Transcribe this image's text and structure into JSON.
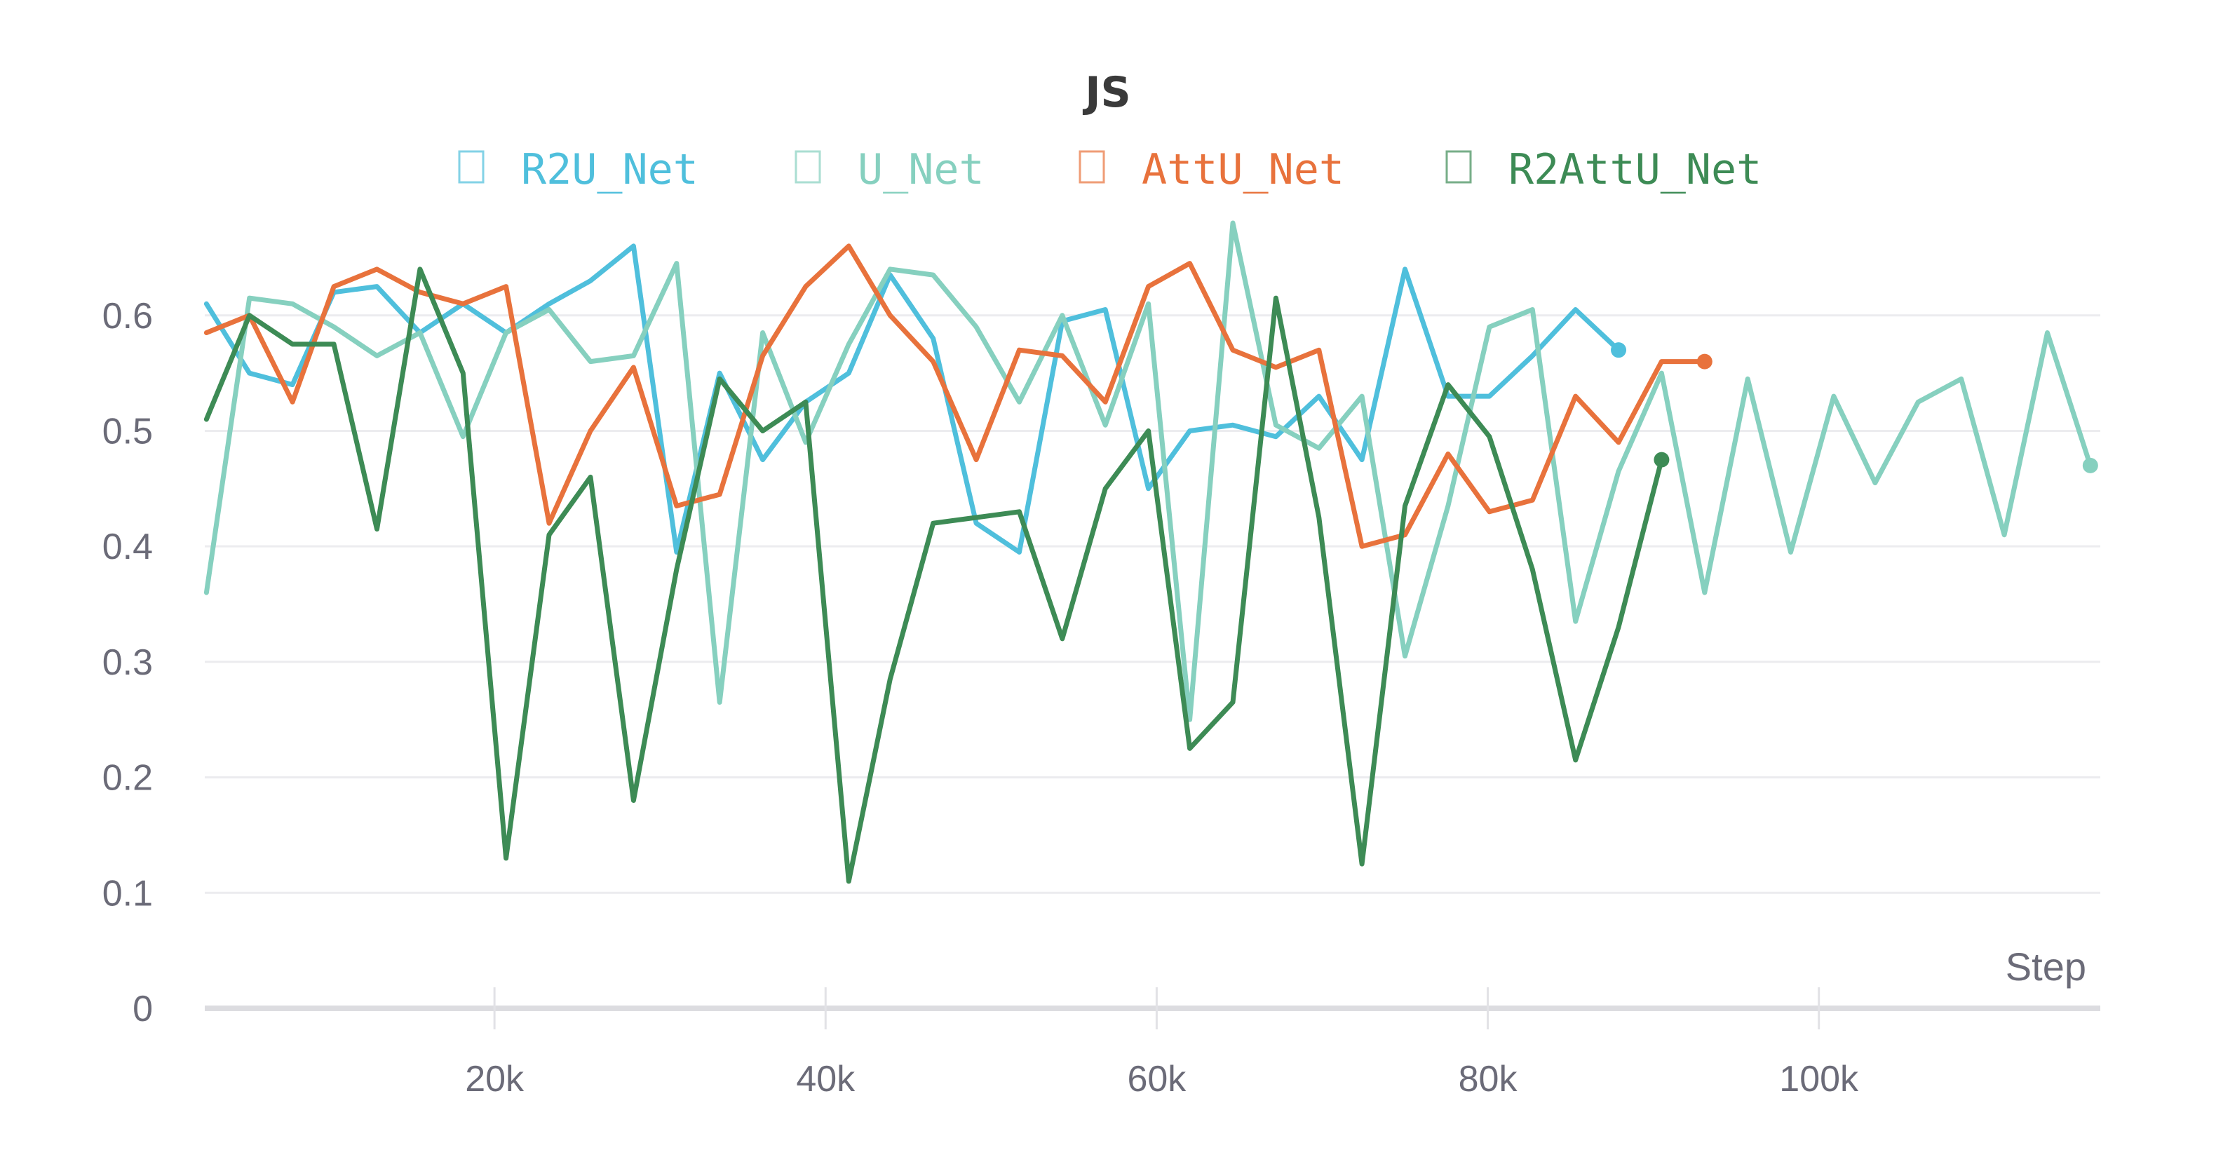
{
  "chart_data": {
    "type": "line",
    "title": "JS",
    "xlabel": "Step",
    "ylabel": "",
    "xlim": [
      2500,
      117000
    ],
    "ylim": [
      0,
      0.68
    ],
    "xticks": [
      20000,
      40000,
      60000,
      80000,
      100000
    ],
    "xtick_labels": [
      "20k",
      "40k",
      "60k",
      "80k",
      "100k"
    ],
    "yticks": [
      0,
      0.1,
      0.2,
      0.3,
      0.4,
      0.5,
      0.6
    ],
    "ytick_labels": [
      "0",
      "0.1",
      "0.2",
      "0.3",
      "0.4",
      "0.5",
      "0.6"
    ],
    "grid": true,
    "legend": "top-center",
    "series": [
      {
        "name": "R2U_Net",
        "color": "#4fbfdc",
        "x": [
          2600,
          5200,
          7800,
          10300,
          12900,
          15500,
          18100,
          20700,
          23300,
          25800,
          28400,
          31000,
          33600,
          36200,
          38800,
          41400,
          43900,
          46500,
          49100,
          51700,
          54300,
          56900,
          59500,
          62000,
          64600,
          67200,
          69800,
          72400,
          75000,
          77600,
          80100,
          82700,
          85300,
          87900
        ],
        "y": [
          0.61,
          0.55,
          0.54,
          0.62,
          0.625,
          0.585,
          0.61,
          0.585,
          0.61,
          0.63,
          0.66,
          0.395,
          0.55,
          0.475,
          0.525,
          0.55,
          0.635,
          0.58,
          0.42,
          0.395,
          0.595,
          0.605,
          0.45,
          0.5,
          0.505,
          0.495,
          0.53,
          0.475,
          0.64,
          0.53,
          0.53,
          0.565,
          0.605,
          0.57
        ]
      },
      {
        "name": "U_Net",
        "color": "#86d0bf",
        "x": [
          2600,
          5200,
          7800,
          10300,
          12900,
          15500,
          18100,
          20700,
          23300,
          25800,
          28400,
          31000,
          33600,
          36200,
          38800,
          41400,
          43900,
          46500,
          49100,
          51700,
          54300,
          56900,
          59500,
          62000,
          64600,
          67200,
          69800,
          72400,
          75000,
          77600,
          80100,
          82700,
          85300,
          87900,
          90500,
          93100,
          95700,
          98300,
          100900,
          103400,
          106000,
          108600,
          111200,
          113800,
          116400
        ],
        "y": [
          0.36,
          0.615,
          0.61,
          0.59,
          0.565,
          0.585,
          0.495,
          0.585,
          0.605,
          0.56,
          0.565,
          0.645,
          0.265,
          0.585,
          0.49,
          0.575,
          0.64,
          0.635,
          0.59,
          0.525,
          0.6,
          0.505,
          0.61,
          0.25,
          0.68,
          0.505,
          0.485,
          0.53,
          0.305,
          0.435,
          0.59,
          0.605,
          0.335,
          0.465,
          0.55,
          0.36,
          0.545,
          0.395,
          0.53,
          0.455,
          0.525,
          0.545,
          0.41,
          0.585,
          0.47
        ]
      },
      {
        "name": "AttU_Net",
        "color": "#e8723c",
        "x": [
          2600,
          5200,
          7800,
          10300,
          12900,
          15500,
          18100,
          20700,
          23300,
          25800,
          28400,
          31000,
          33600,
          36200,
          38800,
          41400,
          43900,
          46500,
          49100,
          51700,
          54300,
          56900,
          59500,
          62000,
          64600,
          67200,
          69800,
          72400,
          75000,
          77600,
          80100,
          82700,
          85300,
          87900,
          90500,
          93100
        ],
        "y": [
          0.585,
          0.6,
          0.525,
          0.625,
          0.64,
          0.62,
          0.61,
          0.625,
          0.42,
          0.5,
          0.555,
          0.435,
          0.445,
          0.565,
          0.625,
          0.66,
          0.6,
          0.56,
          0.475,
          0.57,
          0.565,
          0.525,
          0.625,
          0.645,
          0.57,
          0.555,
          0.57,
          0.4,
          0.41,
          0.48,
          0.43,
          0.44,
          0.53,
          0.49,
          0.56,
          0.56
        ]
      },
      {
        "name": "R2AttU_Net",
        "color": "#3d8b55",
        "x": [
          2600,
          5200,
          7800,
          10300,
          12900,
          15500,
          18100,
          20700,
          23300,
          25800,
          28400,
          31000,
          33600,
          36200,
          38800,
          41400,
          43900,
          46500,
          49100,
          51700,
          54300,
          56900,
          59500,
          62000,
          64600,
          67200,
          69800,
          72400,
          75000,
          77600,
          80100,
          82700,
          85300,
          87900,
          90500
        ],
        "y": [
          0.51,
          0.6,
          0.575,
          0.575,
          0.415,
          0.64,
          0.55,
          0.13,
          0.41,
          0.46,
          0.18,
          0.38,
          0.545,
          0.5,
          0.525,
          0.11,
          0.285,
          0.42,
          0.425,
          0.43,
          0.32,
          0.45,
          0.5,
          0.225,
          0.265,
          0.615,
          0.425,
          0.125,
          0.435,
          0.54,
          0.495,
          0.38,
          0.215,
          0.33,
          0.475
        ]
      }
    ]
  }
}
